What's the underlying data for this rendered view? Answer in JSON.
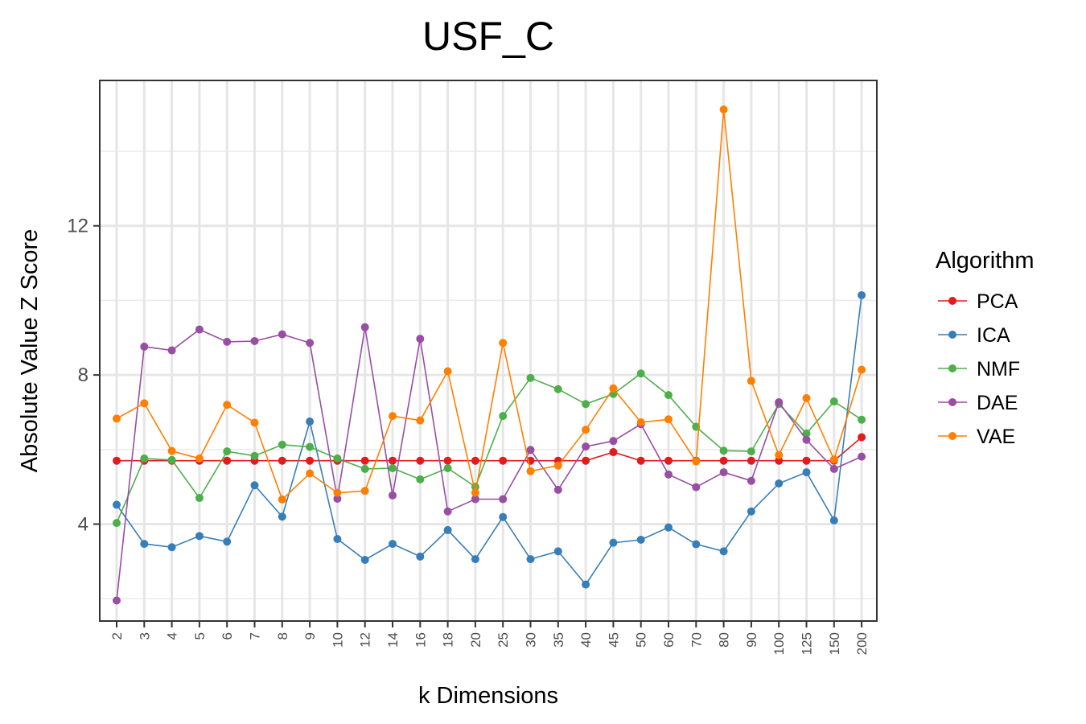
{
  "chart_data": {
    "type": "line",
    "title": "USF_C",
    "xlabel": "k Dimensions",
    "ylabel": "Absolute Value Z Score",
    "categories": [
      "2",
      "3",
      "4",
      "5",
      "6",
      "7",
      "8",
      "9",
      "10",
      "12",
      "14",
      "16",
      "18",
      "20",
      "25",
      "30",
      "35",
      "40",
      "45",
      "50",
      "60",
      "70",
      "80",
      "90",
      "100",
      "125",
      "150",
      "200"
    ],
    "yticks": [
      4,
      8,
      12
    ],
    "ylim": [
      1.4,
      15.9
    ],
    "grid": true,
    "legend": {
      "title": "Algorithm",
      "position": "right"
    },
    "series": [
      {
        "name": "PCA",
        "color": "#E41A1C",
        "values": [
          5.7,
          5.7,
          5.7,
          5.7,
          5.7,
          5.7,
          5.7,
          5.7,
          5.7,
          5.7,
          5.7,
          5.7,
          5.7,
          5.7,
          5.7,
          5.7,
          5.7,
          5.7,
          5.93,
          5.7,
          5.7,
          5.7,
          5.7,
          5.7,
          5.7,
          5.7,
          5.7,
          6.33
        ]
      },
      {
        "name": "ICA",
        "color": "#377EB8",
        "values": [
          4.52,
          3.47,
          3.38,
          3.68,
          3.53,
          5.04,
          4.2,
          6.75,
          3.6,
          3.04,
          3.47,
          3.13,
          3.84,
          3.06,
          4.19,
          3.06,
          3.27,
          2.38,
          3.5,
          3.58,
          3.91,
          3.46,
          3.27,
          4.34,
          5.09,
          5.39,
          4.1,
          10.14
        ]
      },
      {
        "name": "NMF",
        "color": "#4DAF4A",
        "values": [
          4.03,
          5.76,
          5.72,
          4.7,
          5.95,
          5.83,
          6.13,
          6.07,
          5.76,
          5.48,
          5.5,
          5.2,
          5.5,
          5.0,
          6.9,
          7.92,
          7.62,
          7.22,
          7.49,
          8.04,
          7.46,
          6.61,
          5.97,
          5.95,
          7.22,
          6.43,
          7.29,
          6.8
        ]
      },
      {
        "name": "DAE",
        "color": "#984EA3",
        "values": [
          1.95,
          8.76,
          8.66,
          9.22,
          8.89,
          8.91,
          9.09,
          8.86,
          4.68,
          9.28,
          4.77,
          8.97,
          4.34,
          4.67,
          4.67,
          5.99,
          4.92,
          6.08,
          6.23,
          6.68,
          5.33,
          4.99,
          5.39,
          5.16,
          7.27,
          6.26,
          5.48,
          5.81
        ]
      },
      {
        "name": "VAE",
        "color": "#FF7F00",
        "values": [
          6.83,
          7.24,
          5.96,
          5.76,
          7.2,
          6.72,
          4.66,
          5.36,
          4.84,
          4.89,
          6.9,
          6.78,
          8.1,
          4.84,
          8.86,
          5.42,
          5.57,
          6.53,
          7.64,
          6.73,
          6.81,
          5.68,
          15.12,
          7.84,
          5.85,
          7.38,
          5.73,
          8.14
        ]
      }
    ]
  }
}
